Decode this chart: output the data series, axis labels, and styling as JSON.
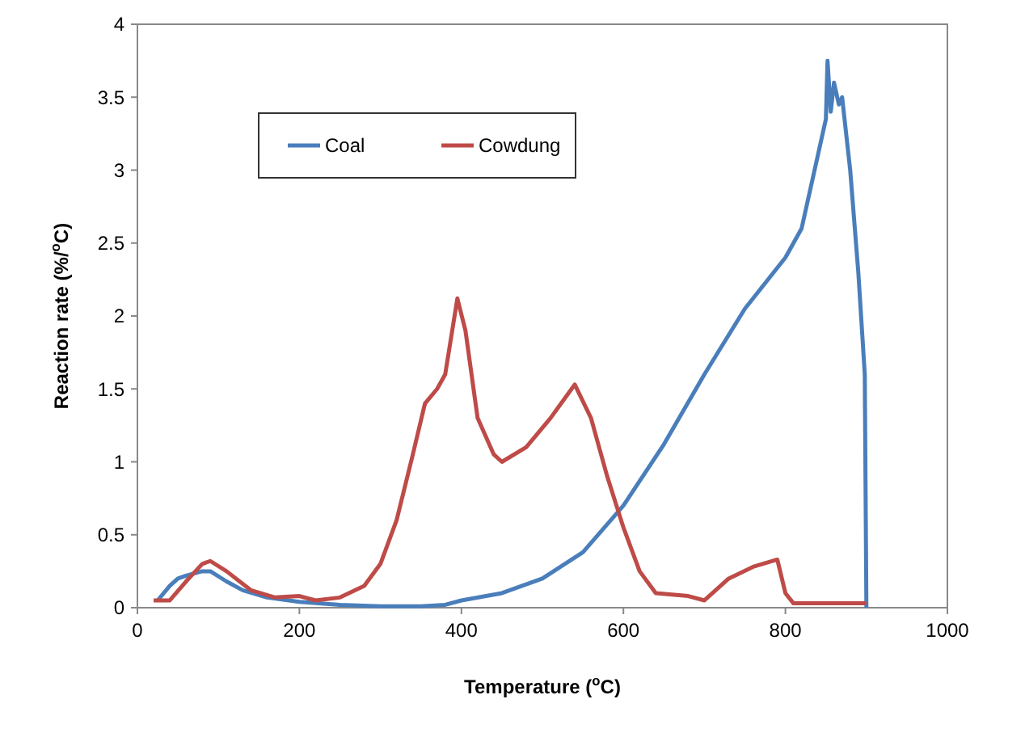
{
  "chart_data": {
    "type": "line",
    "xlabel": "Temperature ($^{o}$C)",
    "ylabel": "Reaction rate (%/$^{o}$C)",
    "xlim": [
      0,
      1000
    ],
    "xticks": [
      0,
      200,
      400,
      600,
      800,
      1000
    ],
    "ylim": [
      0,
      4
    ],
    "yticks": [
      0,
      0.5,
      1,
      1.5,
      2,
      2.5,
      3,
      3.5,
      4
    ],
    "grid": false,
    "legend": "top left",
    "line_style": "solid",
    "series": [
      {
        "name": "Coal",
        "color": "#4a7ebb",
        "x": [
          25,
          40,
          50,
          60,
          80,
          90,
          110,
          130,
          160,
          200,
          250,
          300,
          350,
          380,
          400,
          450,
          500,
          550,
          600,
          650,
          700,
          750,
          800,
          820,
          840,
          850,
          852,
          856,
          860,
          866,
          870,
          880,
          890,
          898,
          900
        ],
        "values": [
          0.05,
          0.15,
          0.2,
          0.22,
          0.25,
          0.25,
          0.18,
          0.12,
          0.07,
          0.04,
          0.02,
          0.01,
          0.01,
          0.02,
          0.05,
          0.1,
          0.2,
          0.38,
          0.7,
          1.12,
          1.6,
          2.05,
          2.4,
          2.6,
          3.1,
          3.35,
          3.75,
          3.4,
          3.6,
          3.45,
          3.5,
          3.0,
          2.3,
          1.6,
          0
        ]
      },
      {
        "name": "Cowdung",
        "color": "#be4b48",
        "x": [
          20,
          40,
          60,
          80,
          90,
          110,
          140,
          170,
          200,
          220,
          250,
          280,
          300,
          320,
          340,
          355,
          370,
          380,
          395,
          405,
          420,
          440,
          450,
          480,
          510,
          540,
          560,
          580,
          600,
          620,
          640,
          680,
          700,
          730,
          760,
          790,
          800,
          810,
          880,
          900
        ],
        "values": [
          0.05,
          0.05,
          0.18,
          0.3,
          0.32,
          0.25,
          0.12,
          0.07,
          0.08,
          0.05,
          0.07,
          0.15,
          0.3,
          0.6,
          1.05,
          1.4,
          1.5,
          1.6,
          2.12,
          1.9,
          1.3,
          1.05,
          1.0,
          1.1,
          1.3,
          1.53,
          1.3,
          0.9,
          0.55,
          0.25,
          0.1,
          0.08,
          0.05,
          0.2,
          0.28,
          0.33,
          0.1,
          0.03,
          0.03,
          0.03
        ]
      }
    ]
  }
}
